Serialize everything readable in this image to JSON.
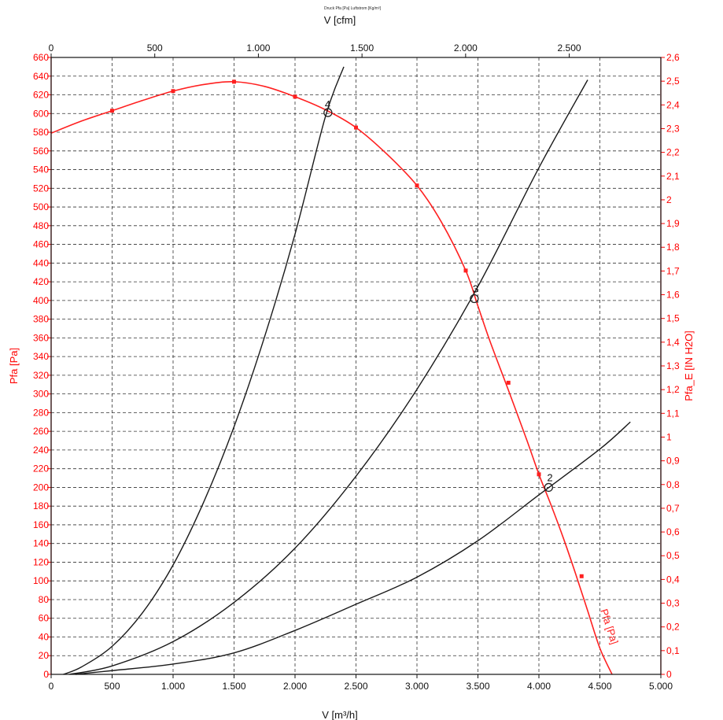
{
  "chart_data": {
    "type": "line",
    "title": "Druck Pfa [Pa] Luftstrom [Kg/m³]",
    "xlabel": "V [m³/h]",
    "x2label": "V [cfm]",
    "ylabel": "Pfa [Pa]",
    "y2label": "Pfa_E [IN H2O]",
    "xlim": [
      0,
      5000
    ],
    "x2lim": [
      0,
      2942
    ],
    "ylim": [
      0,
      660
    ],
    "y2lim": [
      0,
      2.6
    ],
    "x_ticks": [
      {
        "value": 0,
        "label": "0"
      },
      {
        "value": 500,
        "label": "500"
      },
      {
        "value": 1000,
        "label": "1.000"
      },
      {
        "value": 1500,
        "label": "1.500"
      },
      {
        "value": 2000,
        "label": "2.000"
      },
      {
        "value": 2500,
        "label": "2.500"
      },
      {
        "value": 3000,
        "label": "3.000"
      },
      {
        "value": 3500,
        "label": "3.500"
      },
      {
        "value": 4000,
        "label": "4.000"
      },
      {
        "value": 4500,
        "label": "4.500"
      },
      {
        "value": 5000,
        "label": "5.000"
      }
    ],
    "x2_ticks": [
      {
        "value": 0,
        "label": "0"
      },
      {
        "value": 500,
        "label": "500"
      },
      {
        "value": 1000,
        "label": "1.000"
      },
      {
        "value": 1500,
        "label": "1.500"
      },
      {
        "value": 2000,
        "label": "2.000"
      },
      {
        "value": 2500,
        "label": "2.500"
      }
    ],
    "y_ticks": [
      0,
      20,
      40,
      60,
      80,
      100,
      120,
      140,
      160,
      180,
      200,
      220,
      240,
      260,
      280,
      300,
      320,
      340,
      360,
      380,
      400,
      420,
      440,
      460,
      480,
      500,
      520,
      540,
      560,
      580,
      600,
      620,
      640,
      660
    ],
    "y2_ticks": [
      {
        "value": 0,
        "label": "0"
      },
      {
        "value": 0.1,
        "label": "0,1"
      },
      {
        "value": 0.2,
        "label": "0,2"
      },
      {
        "value": 0.3,
        "label": "0,3"
      },
      {
        "value": 0.4,
        "label": "0,4"
      },
      {
        "value": 0.5,
        "label": "0,5"
      },
      {
        "value": 0.6,
        "label": "0,6"
      },
      {
        "value": 0.7,
        "label": "0,7"
      },
      {
        "value": 0.8,
        "label": "0,8"
      },
      {
        "value": 0.9,
        "label": "0,9"
      },
      {
        "value": 1.0,
        "label": "1"
      },
      {
        "value": 1.1,
        "label": "1,1"
      },
      {
        "value": 1.2,
        "label": "1,2"
      },
      {
        "value": 1.3,
        "label": "1,3"
      },
      {
        "value": 1.4,
        "label": "1,4"
      },
      {
        "value": 1.5,
        "label": "1,5"
      },
      {
        "value": 1.6,
        "label": "1,6"
      },
      {
        "value": 1.7,
        "label": "1,7"
      },
      {
        "value": 1.8,
        "label": "1,8"
      },
      {
        "value": 1.9,
        "label": "1,9"
      },
      {
        "value": 2.0,
        "label": "2"
      },
      {
        "value": 2.1,
        "label": "2,1"
      },
      {
        "value": 2.2,
        "label": "2,2"
      },
      {
        "value": 2.3,
        "label": "2,3"
      },
      {
        "value": 2.4,
        "label": "2,4"
      },
      {
        "value": 2.5,
        "label": "2,5"
      },
      {
        "value": 2.6,
        "label": "2,6"
      }
    ],
    "grid": true,
    "colors": {
      "fan_curve": "#ff2020",
      "system_curve": "#1a1a1a",
      "axis_red": "#ff0000",
      "grid": "#333333"
    },
    "series": [
      {
        "name": "Pfa [Pa]",
        "role": "fan_curve",
        "x": [
          0,
          250,
          500,
          750,
          1000,
          1250,
          1500,
          1750,
          2000,
          2250,
          2500,
          2750,
          3000,
          3200,
          3400,
          3500,
          3600,
          3750,
          3900,
          4000,
          4100,
          4200,
          4300,
          4400,
          4500,
          4600
        ],
        "y": [
          579,
          592,
          603,
          614,
          624,
          631,
          634,
          629,
          618,
          604,
          585,
          557,
          523,
          484,
          432,
          394,
          356,
          304,
          251,
          214,
          181,
          146,
          108,
          68,
          28,
          0
        ],
        "markers_x": [
          500,
          1000,
          1500,
          2000,
          2500,
          3000,
          3400,
          3750,
          4000,
          4350
        ],
        "markers_y": [
          603,
          624,
          634,
          618,
          585,
          523,
          432,
          312,
          214,
          105
        ],
        "end_label": "Pfa [Pa]"
      },
      {
        "name": "4",
        "role": "system_curve",
        "x": [
          100,
          250,
          500,
          750,
          1000,
          1250,
          1500,
          1750,
          2000,
          2250,
          2400
        ],
        "y": [
          0,
          8,
          30,
          66,
          117,
          184,
          265,
          361,
          471,
          597,
          650
        ],
        "op_point": {
          "x": 2270,
          "y": 601,
          "label": "4"
        }
      },
      {
        "name": "3",
        "role": "system_curve",
        "x": [
          150,
          500,
          1000,
          1500,
          2000,
          2500,
          3000,
          3500,
          4000,
          4400
        ],
        "y": [
          0,
          9,
          35,
          77,
          135,
          212,
          305,
          415,
          542,
          636
        ],
        "op_point": {
          "x": 3470,
          "y": 402,
          "label": "3"
        }
      },
      {
        "name": "2",
        "role": "system_curve",
        "x": [
          200,
          500,
          1000,
          1500,
          2000,
          2500,
          3000,
          3500,
          4000,
          4500,
          4750
        ],
        "y": [
          0,
          4,
          11,
          23,
          47,
          75,
          104,
          143,
          192,
          241,
          270
        ],
        "op_point": {
          "x": 4080,
          "y": 200,
          "label": "2"
        }
      }
    ]
  }
}
